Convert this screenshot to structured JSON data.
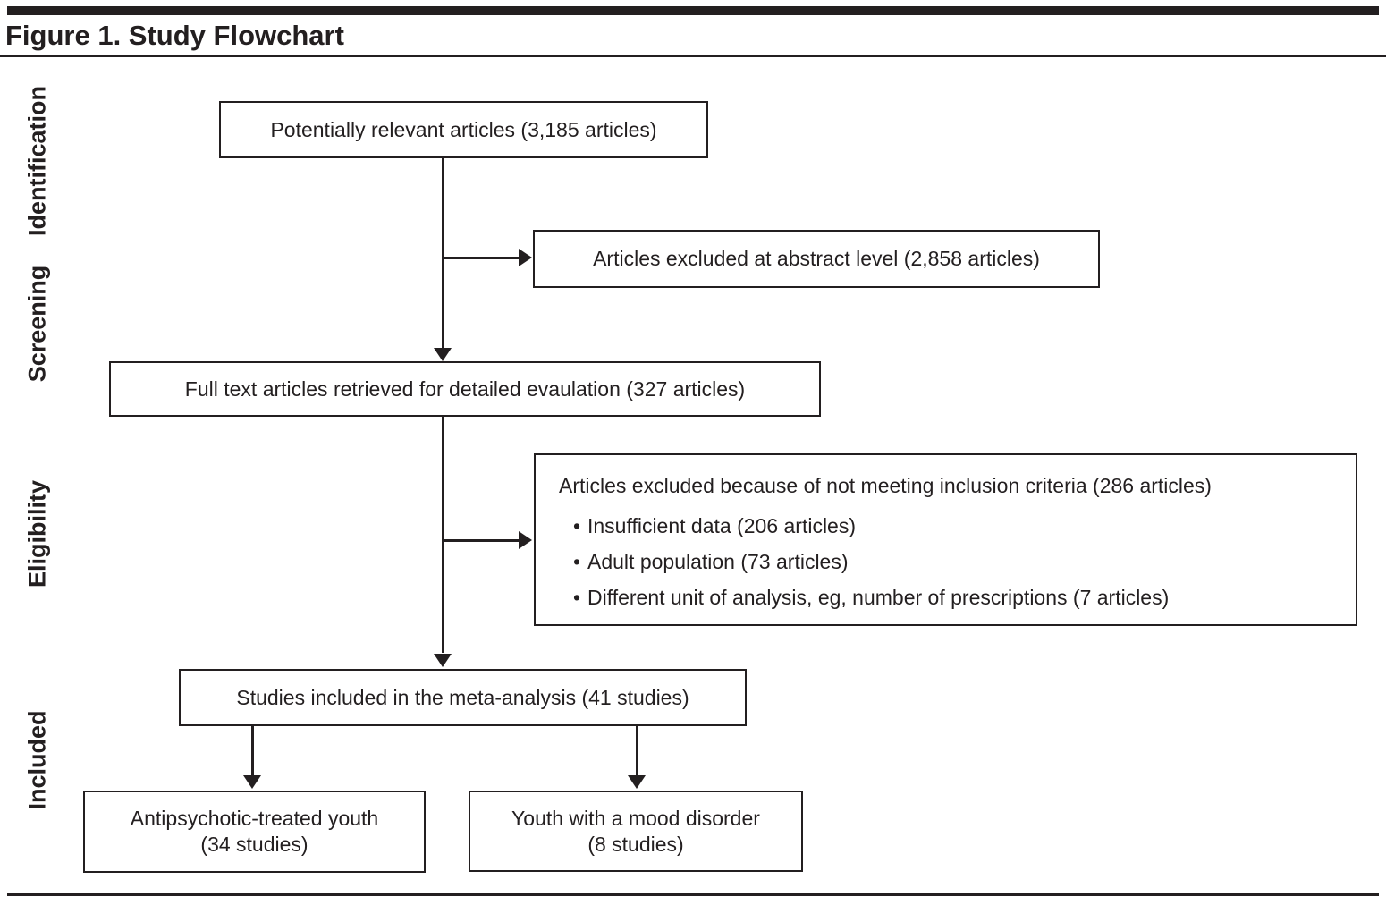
{
  "figure": {
    "title": "Figure 1. Study Flowchart"
  },
  "colors": {
    "ink": "#231f20",
    "background": "#ffffff"
  },
  "stages": [
    {
      "label": "Identification"
    },
    {
      "label": "Screening"
    },
    {
      "label": "Eligibility"
    },
    {
      "label": "Included"
    }
  ],
  "boxes": {
    "potentially_relevant": {
      "text": "Potentially relevant articles (3,185 articles)"
    },
    "excluded_abstract": {
      "text": "Articles excluded at abstract level (2,858 articles)"
    },
    "full_text_retrieved": {
      "text": "Full text articles retrieved for detailed evaulation (327 articles)"
    },
    "excluded_criteria": {
      "heading": "Articles excluded because of not meeting inclusion criteria (286 articles)",
      "bullets": [
        "Insufficient data (206 articles)",
        "Adult population (73 articles)",
        "Different unit of analysis, eg, number of prescriptions (7 articles)"
      ]
    },
    "included_meta_analysis": {
      "text": "Studies included in the meta-analysis (41 studies)"
    },
    "antipsychotic_youth": {
      "line1": "Antipsychotic-treated youth",
      "line2": "(34 studies)"
    },
    "mood_disorder_youth": {
      "line1": "Youth with a mood disorder",
      "line2": "(8 studies)"
    }
  }
}
